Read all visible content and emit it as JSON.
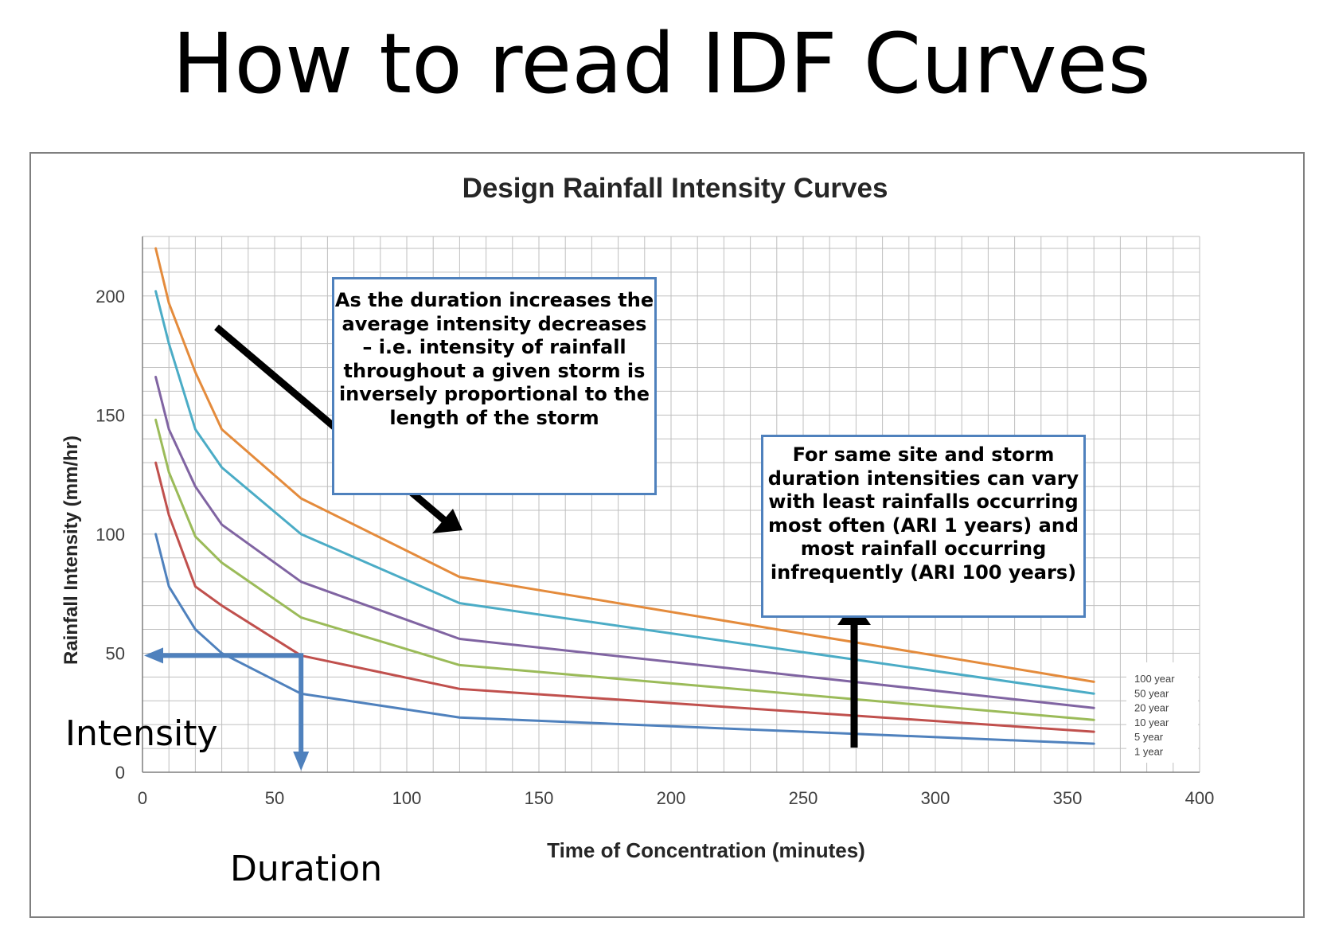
{
  "page_title": "How to read IDF Curves",
  "callouts": {
    "duration": "As the duration increases the average intensity decreases – i.e. intensity of rainfall throughout a given storm is inversely proportional to the length of the storm",
    "frequency": "For same site and storm duration intensities can vary with least rainfalls occurring most often (ARI 1 years) and most rainfall occurring infrequently (ARI 100 years)"
  },
  "reading_labels": {
    "intensity": "Intensity",
    "duration": "Duration"
  },
  "reading_example": {
    "duration_min": 60,
    "intensity_mm_hr": 49
  },
  "colors": {
    "annotation_blue": "#4f81bd",
    "arrow": "#000000",
    "grid": "#bfbfbf",
    "frame": "#7f7f7f"
  },
  "chart_data": {
    "type": "line",
    "title": "Design Rainfall Intensity Curves",
    "xlabel": "Time of Concentration (minutes)",
    "ylabel": "Rainfall Intensity (mm/hr)",
    "xlim": [
      0,
      400
    ],
    "ylim": [
      0,
      225
    ],
    "xticks": [
      0,
      50,
      100,
      150,
      200,
      250,
      300,
      350,
      400
    ],
    "yticks": [
      0,
      50,
      100,
      150,
      200
    ],
    "grid": true,
    "legend_position": "bottom-right",
    "x": [
      5,
      10,
      20,
      30,
      60,
      120,
      360
    ],
    "series": [
      {
        "name": "100 year",
        "color": "#e48b3c",
        "values": [
          220,
          197,
          168,
          144,
          115,
          82,
          38
        ]
      },
      {
        "name": "50 year",
        "color": "#4bacc6",
        "values": [
          202,
          180,
          144,
          128,
          100,
          71,
          33
        ]
      },
      {
        "name": "20 year",
        "color": "#8064a2",
        "values": [
          166,
          144,
          120,
          104,
          80,
          56,
          27
        ]
      },
      {
        "name": "10 year",
        "color": "#9bbb59",
        "values": [
          148,
          126,
          99,
          88,
          65,
          45,
          22
        ]
      },
      {
        "name": "5 year",
        "color": "#c0504d",
        "values": [
          130,
          108,
          78,
          70,
          49,
          35,
          17
        ]
      },
      {
        "name": "1 year",
        "color": "#4f81bd",
        "values": [
          100,
          78,
          60,
          50,
          33,
          23,
          12
        ]
      }
    ]
  }
}
